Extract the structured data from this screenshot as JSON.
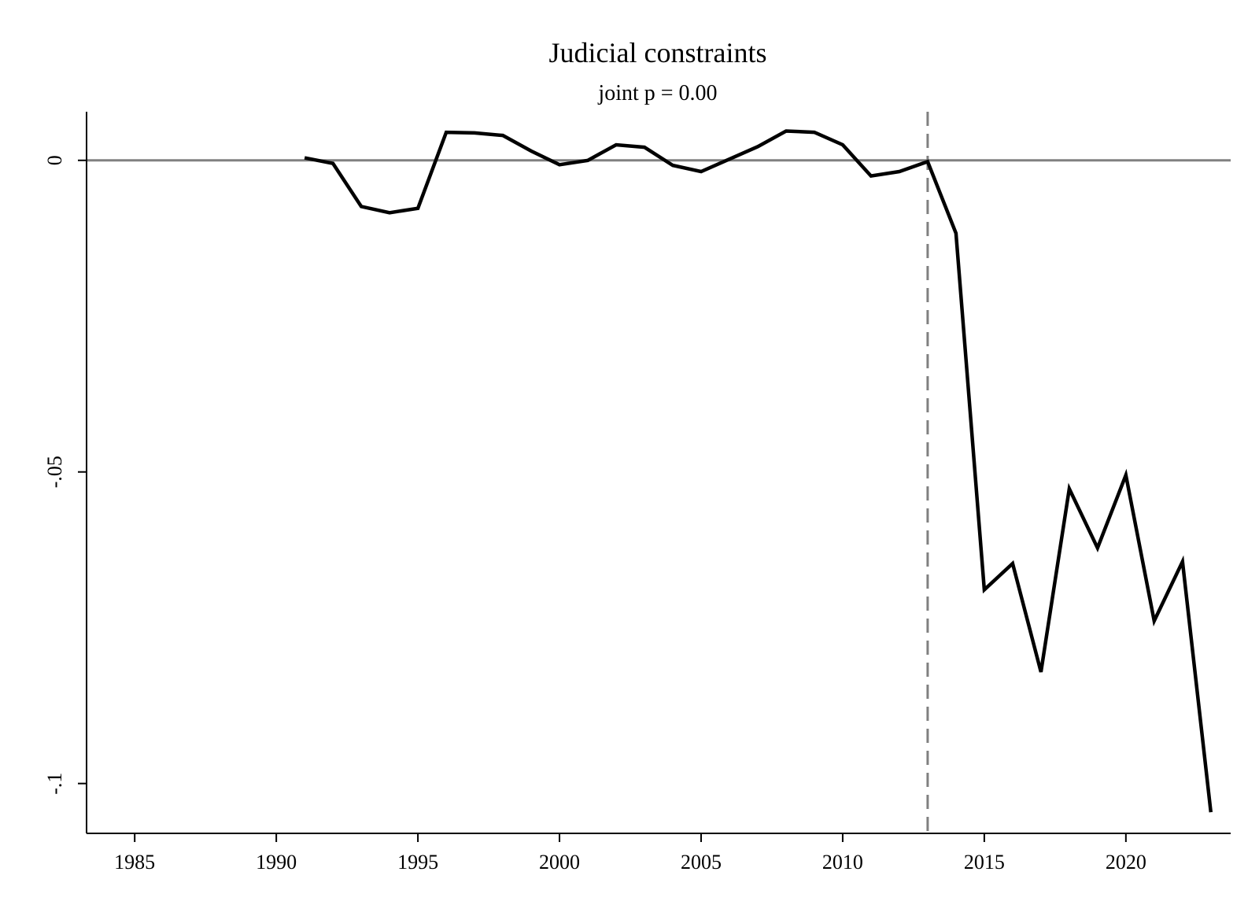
{
  "chart_data": {
    "type": "line",
    "title": "Judicial constraints",
    "subtitle": "joint p = 0.00",
    "xlabel": "",
    "ylabel": "",
    "xlim": [
      1983.3,
      2023.7
    ],
    "ylim": [
      -0.108,
      0.0078
    ],
    "x_ticks": [
      1985,
      1990,
      1995,
      2000,
      2005,
      2010,
      2015,
      2020
    ],
    "x_tick_labels": [
      "1985",
      "1990",
      "1995",
      "2000",
      "2005",
      "2010",
      "2015",
      "2020"
    ],
    "y_ticks": [
      0,
      -0.05,
      -0.1
    ],
    "y_tick_labels": [
      "0",
      "-.05",
      "-.1"
    ],
    "reference_lines": {
      "horizontal_y": 0,
      "vertical_x": 2013
    },
    "grid": false,
    "series": [
      {
        "x": [
          1991,
          1992,
          1993,
          1994,
          1995,
          1996,
          1997,
          1998,
          1999,
          2000,
          2001,
          2002,
          2003,
          2004,
          2005,
          2006,
          2007,
          2008,
          2009,
          2010,
          2011,
          2012,
          2013,
          2014,
          2015,
          2016,
          2017,
          2018,
          2019,
          2020,
          2021,
          2022,
          2023
        ],
        "y": [
          0.0004,
          -0.0005,
          -0.0074,
          -0.0084,
          -0.0077,
          0.0045,
          0.0044,
          0.004,
          0.0015,
          -0.0007,
          0.0,
          0.0025,
          0.0021,
          -0.0008,
          -0.0018,
          0.0002,
          0.0022,
          0.0047,
          0.0045,
          0.0025,
          -0.0025,
          -0.0018,
          -0.0002,
          -0.0117,
          -0.0689,
          -0.0647,
          -0.0821,
          -0.0527,
          -0.0622,
          -0.0505,
          -0.0739,
          -0.0644,
          -0.1046
        ]
      }
    ]
  }
}
